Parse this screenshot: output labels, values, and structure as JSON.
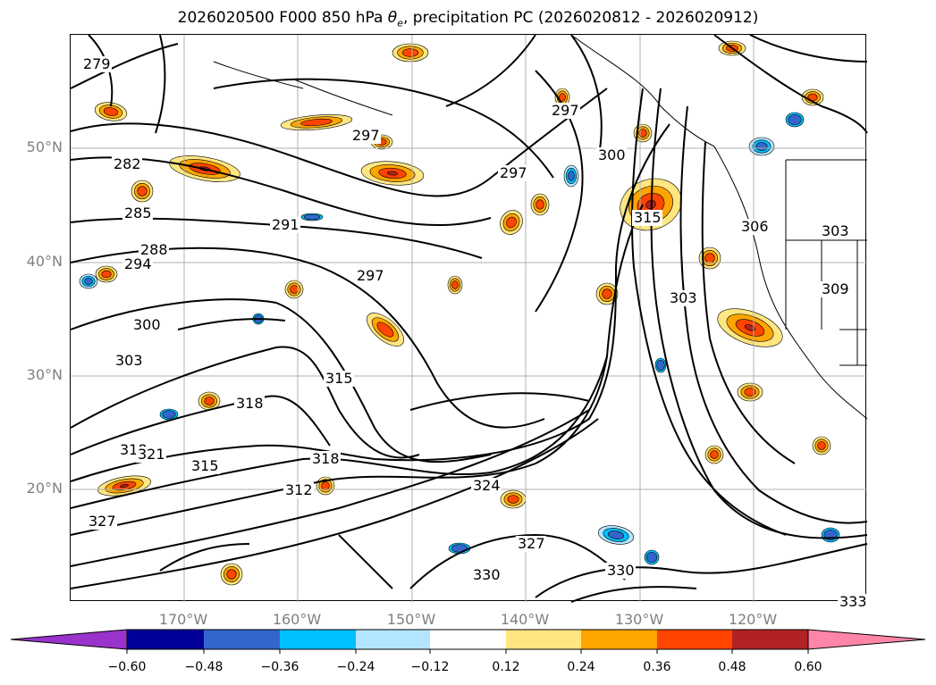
{
  "title": "2026020500 F000 850 hPa θe, precipitation PC (2026020812 - 2026020912)",
  "title_parts": {
    "prefix": "2026020500 F000 850 hPa ",
    "symbol": "θ",
    "subscript": "e",
    "suffix": ", precipitation PC (2026020812 - 2026020912)"
  },
  "map": {
    "lat_labels": [
      {
        "text": "50°N",
        "lat": 50
      },
      {
        "text": "40°N",
        "lat": 40
      },
      {
        "text": "30°N",
        "lat": 30
      },
      {
        "text": "20°N",
        "lat": 20
      }
    ],
    "lon_labels": [
      {
        "text": "170°W",
        "lon": -170
      },
      {
        "text": "160°W",
        "lon": -160
      },
      {
        "text": "150°W",
        "lon": -150
      },
      {
        "text": "140°W",
        "lon": -140
      },
      {
        "text": "130°W",
        "lon": -130
      },
      {
        "text": "120°W",
        "lon": -120
      }
    ],
    "contour_labels": [
      "279",
      "282",
      "285",
      "288",
      "291",
      "294",
      "297",
      "297",
      "297",
      "297",
      "300",
      "300",
      "303",
      "303",
      "303",
      "306",
      "309",
      "312",
      "315",
      "315",
      "315",
      "318",
      "318",
      "318",
      "321",
      "324",
      "327",
      "327",
      "330",
      "330",
      "333"
    ],
    "grid_color": "#b0b0b0",
    "contour_color": "#000000"
  },
  "colorbar": {
    "colors": [
      "#9933cc",
      "#000099",
      "#3366cc",
      "#00bfff",
      "#b3e5ff",
      "#ffffff",
      "#ffe680",
      "#ffa500",
      "#ff4500",
      "#b22222",
      "#ff85a8"
    ],
    "ticks": [
      "−0.60",
      "−0.48",
      "−0.36",
      "−0.24",
      "−0.12",
      "0.12",
      "0.24",
      "0.36",
      "0.48",
      "0.60"
    ]
  }
}
